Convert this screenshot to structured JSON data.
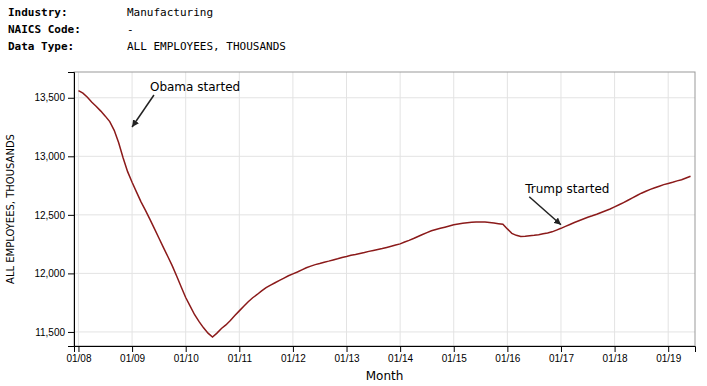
{
  "chart_data": {
    "type": "line",
    "header": [
      {
        "label": "Industry:",
        "value": "Manufacturing"
      },
      {
        "label": "NAICS Code:",
        "value": "-"
      },
      {
        "label": "Data Type:",
        "value": "ALL EMPLOYEES, THOUSANDS"
      }
    ],
    "x_label": "Month",
    "y_label": "ALL EMPLOYEES, THOUSANDS",
    "color": "#8b1a1a",
    "grid": true,
    "ylim": [
      11380,
      13720
    ],
    "yticks": [
      {
        "value": 11500,
        "label": "11,500"
      },
      {
        "value": 12000,
        "label": "12,000"
      },
      {
        "value": 12500,
        "label": "12,500"
      },
      {
        "value": 13000,
        "label": "13,000"
      },
      {
        "value": 13500,
        "label": "13,500"
      }
    ],
    "categories": [
      "01/08",
      null,
      null,
      null,
      null,
      null,
      null,
      null,
      null,
      null,
      null,
      null,
      "01/09",
      null,
      null,
      null,
      null,
      null,
      null,
      null,
      null,
      null,
      null,
      null,
      "01/10",
      null,
      null,
      null,
      null,
      null,
      null,
      null,
      null,
      null,
      null,
      null,
      "01/11",
      null,
      null,
      null,
      null,
      null,
      null,
      null,
      null,
      null,
      null,
      null,
      "01/12",
      null,
      null,
      null,
      null,
      null,
      null,
      null,
      null,
      null,
      null,
      null,
      "01/13",
      null,
      null,
      null,
      null,
      null,
      null,
      null,
      null,
      null,
      null,
      null,
      "01/14",
      null,
      null,
      null,
      null,
      null,
      null,
      null,
      null,
      null,
      null,
      null,
      "01/15",
      null,
      null,
      null,
      null,
      null,
      null,
      null,
      null,
      null,
      null,
      null,
      "01/16",
      null,
      null,
      null,
      null,
      null,
      null,
      null,
      null,
      null,
      null,
      null,
      "01/17",
      null,
      null,
      null,
      null,
      null,
      null,
      null,
      null,
      null,
      null,
      null,
      "01/18",
      null,
      null,
      null,
      null,
      null,
      null,
      null,
      null,
      null,
      null,
      null,
      "01/19",
      null,
      null,
      null,
      null,
      null
    ],
    "values": [
      13561,
      13540,
      13505,
      13462,
      13426,
      13386,
      13343,
      13296,
      13222,
      13115,
      12986,
      12869,
      12778,
      12694,
      12611,
      12538,
      12461,
      12383,
      12302,
      12222,
      12144,
      12064,
      11975,
      11884,
      11794,
      11721,
      11647,
      11588,
      11535,
      11490,
      11457,
      11490,
      11530,
      11560,
      11598,
      11640,
      11680,
      11720,
      11758,
      11792,
      11820,
      11850,
      11878,
      11900,
      11920,
      11940,
      11960,
      11980,
      11996,
      12012,
      12030,
      12048,
      12062,
      12075,
      12085,
      12096,
      12105,
      12115,
      12125,
      12136,
      12145,
      12155,
      12162,
      12170,
      12178,
      12188,
      12196,
      12204,
      12212,
      12222,
      12232,
      12242,
      12252,
      12268,
      12282,
      12298,
      12315,
      12332,
      12348,
      12364,
      12375,
      12385,
      12395,
      12405,
      12415,
      12422,
      12428,
      12432,
      12436,
      12440,
      12440,
      12438,
      12435,
      12430,
      12425,
      12420,
      12380,
      12342,
      12325,
      12315,
      12318,
      12322,
      12325,
      12330,
      12338,
      12345,
      12355,
      12370,
      12385,
      12402,
      12418,
      12435,
      12450,
      12465,
      12480,
      12492,
      12505,
      12520,
      12535,
      12550,
      12568,
      12586,
      12605,
      12625,
      12645,
      12665,
      12685,
      12702,
      12718,
      12732,
      12745,
      12758,
      12768,
      12778,
      12790,
      12800,
      12815,
      12830
    ],
    "annotations": [
      {
        "text": "Obama started",
        "index": 12,
        "y": 13250
      },
      {
        "text": "Trump started",
        "index": 108,
        "y": 12415
      }
    ]
  }
}
